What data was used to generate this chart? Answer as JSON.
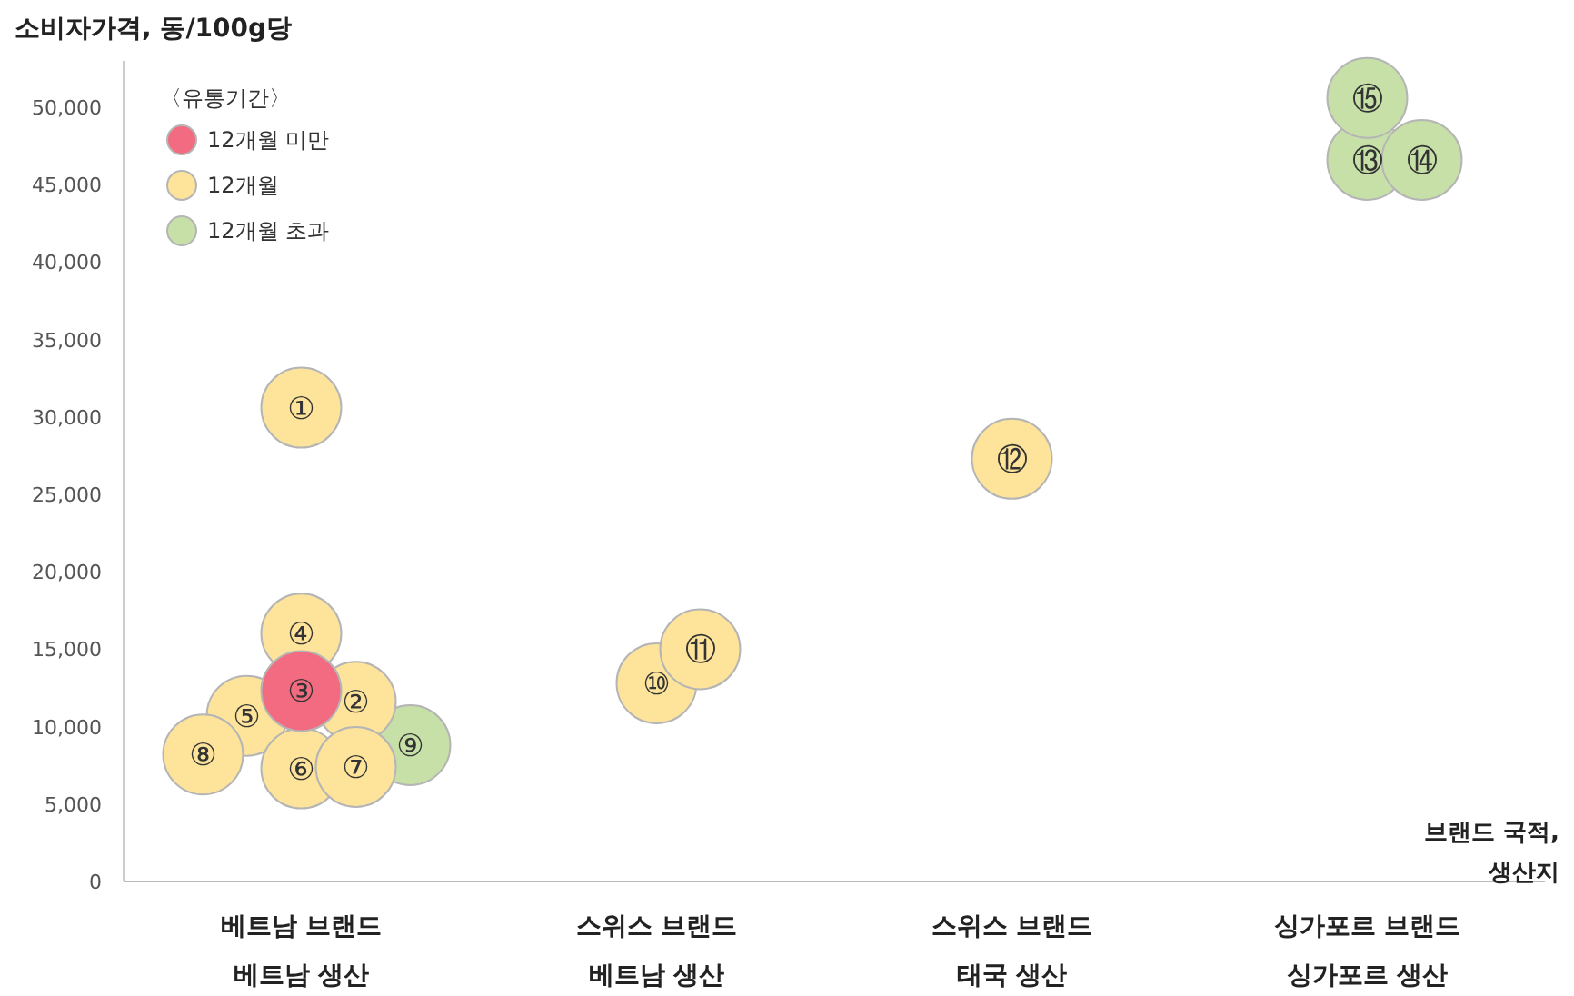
{
  "chart_data": {
    "type": "scatter",
    "ylabel": "소비자가격, 동/100g당",
    "xlabel": "브랜드 국적,\n생산지",
    "legend_title": "〈유통기간〉",
    "legend": "top left",
    "grid": false,
    "marker": "circle",
    "categories": [
      "베트남 브랜드\n베트남 생산",
      "스위스 브랜드\n베트남 생산",
      "스위스 브랜드\n태국 생산",
      "싱가포르 브랜드\n싱가포르 생산"
    ],
    "ylim": [
      0,
      53000
    ],
    "yticks": [
      {
        "value": 0,
        "label": "0"
      },
      {
        "value": 5000,
        "label": "5,000"
      },
      {
        "value": 10000,
        "label": "10,000"
      },
      {
        "value": 15000,
        "label": "15,000"
      },
      {
        "value": 20000,
        "label": "20,000"
      },
      {
        "value": 25000,
        "label": "25,000"
      },
      {
        "value": 30000,
        "label": "30,000"
      },
      {
        "value": 35000,
        "label": "35,000"
      },
      {
        "value": 40000,
        "label": "40,000"
      },
      {
        "value": 45000,
        "label": "45,000"
      },
      {
        "value": 50000,
        "label": "50,000"
      }
    ],
    "series": [
      {
        "name": "12개월 미만",
        "color": "#f26b80",
        "x": [
          "베트남 브랜드\n베트남 생산"
        ],
        "values": [
          12300
        ]
      },
      {
        "name": "12개월",
        "color": "#fde49a",
        "x": [
          "베트남 브랜드\n베트남 생산",
          "베트남 브랜드\n베트남 생산",
          "베트남 브랜드\n베트남 생산",
          "베트남 브랜드\n베트남 생산",
          "베트남 브랜드\n베트남 생산",
          "베트남 브랜드\n베트남 생산",
          "베트남 브랜드\n베트남 생산",
          "스위스 브랜드\n베트남 생산",
          "스위스 브랜드\n베트남 생산",
          "스위스 브랜드\n태국 생산"
        ],
        "values": [
          30600,
          11600,
          16000,
          10700,
          7300,
          7400,
          8200,
          12800,
          15000,
          27300
        ]
      },
      {
        "name": "12개월 초과",
        "color": "#c6e0a8",
        "x": [
          "베트남 브랜드\n베트남 생산",
          "싱가포르 브랜드\n싱가포르 생산",
          "싱가포르 브랜드\n싱가포르 생산",
          "싱가포르 브랜드\n싱가포르 생산"
        ],
        "values": [
          8800,
          46600,
          46600,
          50600
        ]
      }
    ],
    "annotations": [
      "③",
      "①",
      "②",
      "④",
      "⑤",
      "⑥",
      "⑦",
      "⑧",
      "⑩",
      "⑪",
      "⑫",
      "⑨",
      "⑬",
      "⑭",
      "⑮"
    ]
  }
}
